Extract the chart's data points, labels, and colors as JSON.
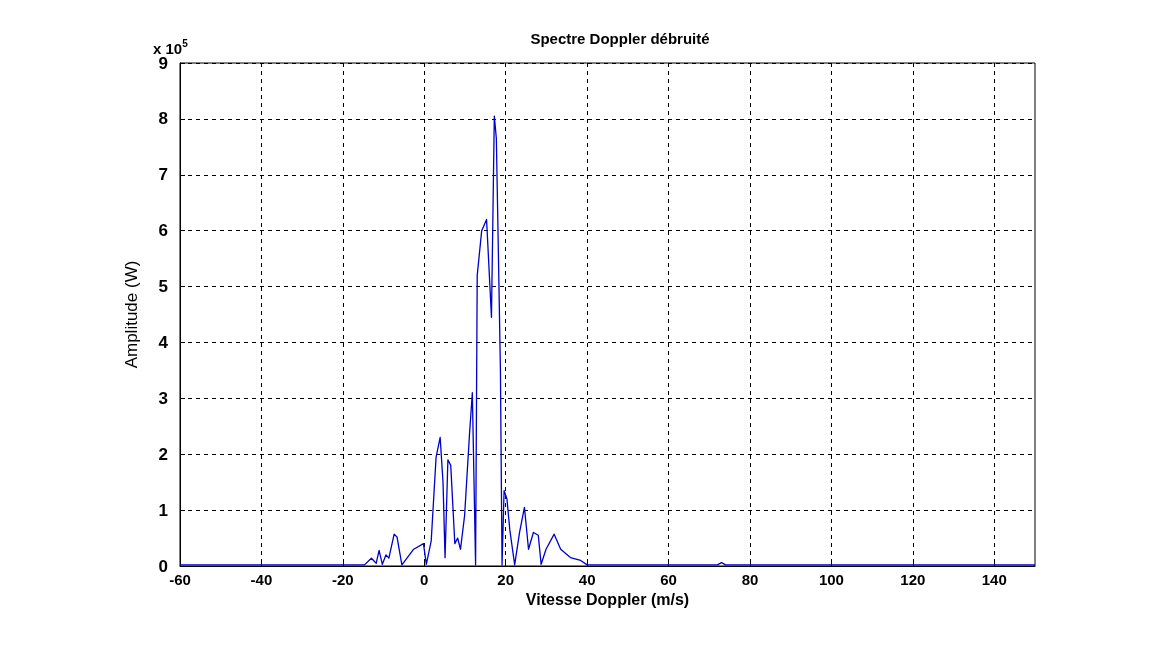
{
  "chart_data": {
    "type": "line",
    "title": "Spectre Doppler débruité",
    "xlabel": "Vitesse Doppler (m/s)",
    "ylabel": "Amplitude (W)",
    "annotations": [
      "x 10$^{5}$"
    ],
    "x": [
      -60,
      -40,
      -20,
      -14.7,
      -13,
      -11.8,
      -11.1,
      -10.3,
      -9.4,
      -8.7,
      -7.4,
      -6.7,
      -5.5,
      -2.6,
      -0.2,
      0.5,
      1.7,
      2.9,
      3.9,
      4.6,
      5.1,
      5.8,
      6.5,
      7.5,
      8.2,
      8.9,
      9.9,
      11.1,
      11.8,
      12.6,
      13,
      14.1,
      15.3,
      16.5,
      17.2,
      17.7,
      18.2,
      18.7,
      19.1,
      19.6,
      20.3,
      21,
      22.2,
      23.4,
      24.6,
      25.6,
      26.8,
      28,
      28.7,
      29.9,
      31.9,
      33.5,
      35.9,
      38.4,
      40,
      60,
      72,
      73,
      74,
      100,
      150
    ],
    "series": [
      {
        "color": "#0000cc",
        "values": [
          0.02,
          0.02,
          0.02,
          0.02,
          0.14,
          0.05,
          0.28,
          0.03,
          0.2,
          0.14,
          0.57,
          0.52,
          0.02,
          0.3,
          0.4,
          0.03,
          0.45,
          1.95,
          2.3,
          1.5,
          0.15,
          1.9,
          1.8,
          0.4,
          0.5,
          0.3,
          0.9,
          2.35,
          3.1,
          0.02,
          5.2,
          6.0,
          6.2,
          4.45,
          8.05,
          7.65,
          5.6,
          3.5,
          0.02,
          1.35,
          1.2,
          0.65,
          0.02,
          0.6,
          1.05,
          0.3,
          0.6,
          0.55,
          0.03,
          0.3,
          0.57,
          0.3,
          0.15,
          0.1,
          0.02,
          0.02,
          0.02,
          0.06,
          0.02,
          0.02,
          0.02
        ]
      }
    ],
    "xlim": [
      -60,
      150
    ],
    "xticks": [
      -60,
      -40,
      -20,
      0,
      20,
      40,
      60,
      80,
      100,
      120,
      140
    ],
    "ylim": [
      0,
      9
    ],
    "yticks": [
      0,
      1,
      2,
      3,
      4,
      5,
      6,
      7,
      8,
      9
    ],
    "grid": true
  }
}
